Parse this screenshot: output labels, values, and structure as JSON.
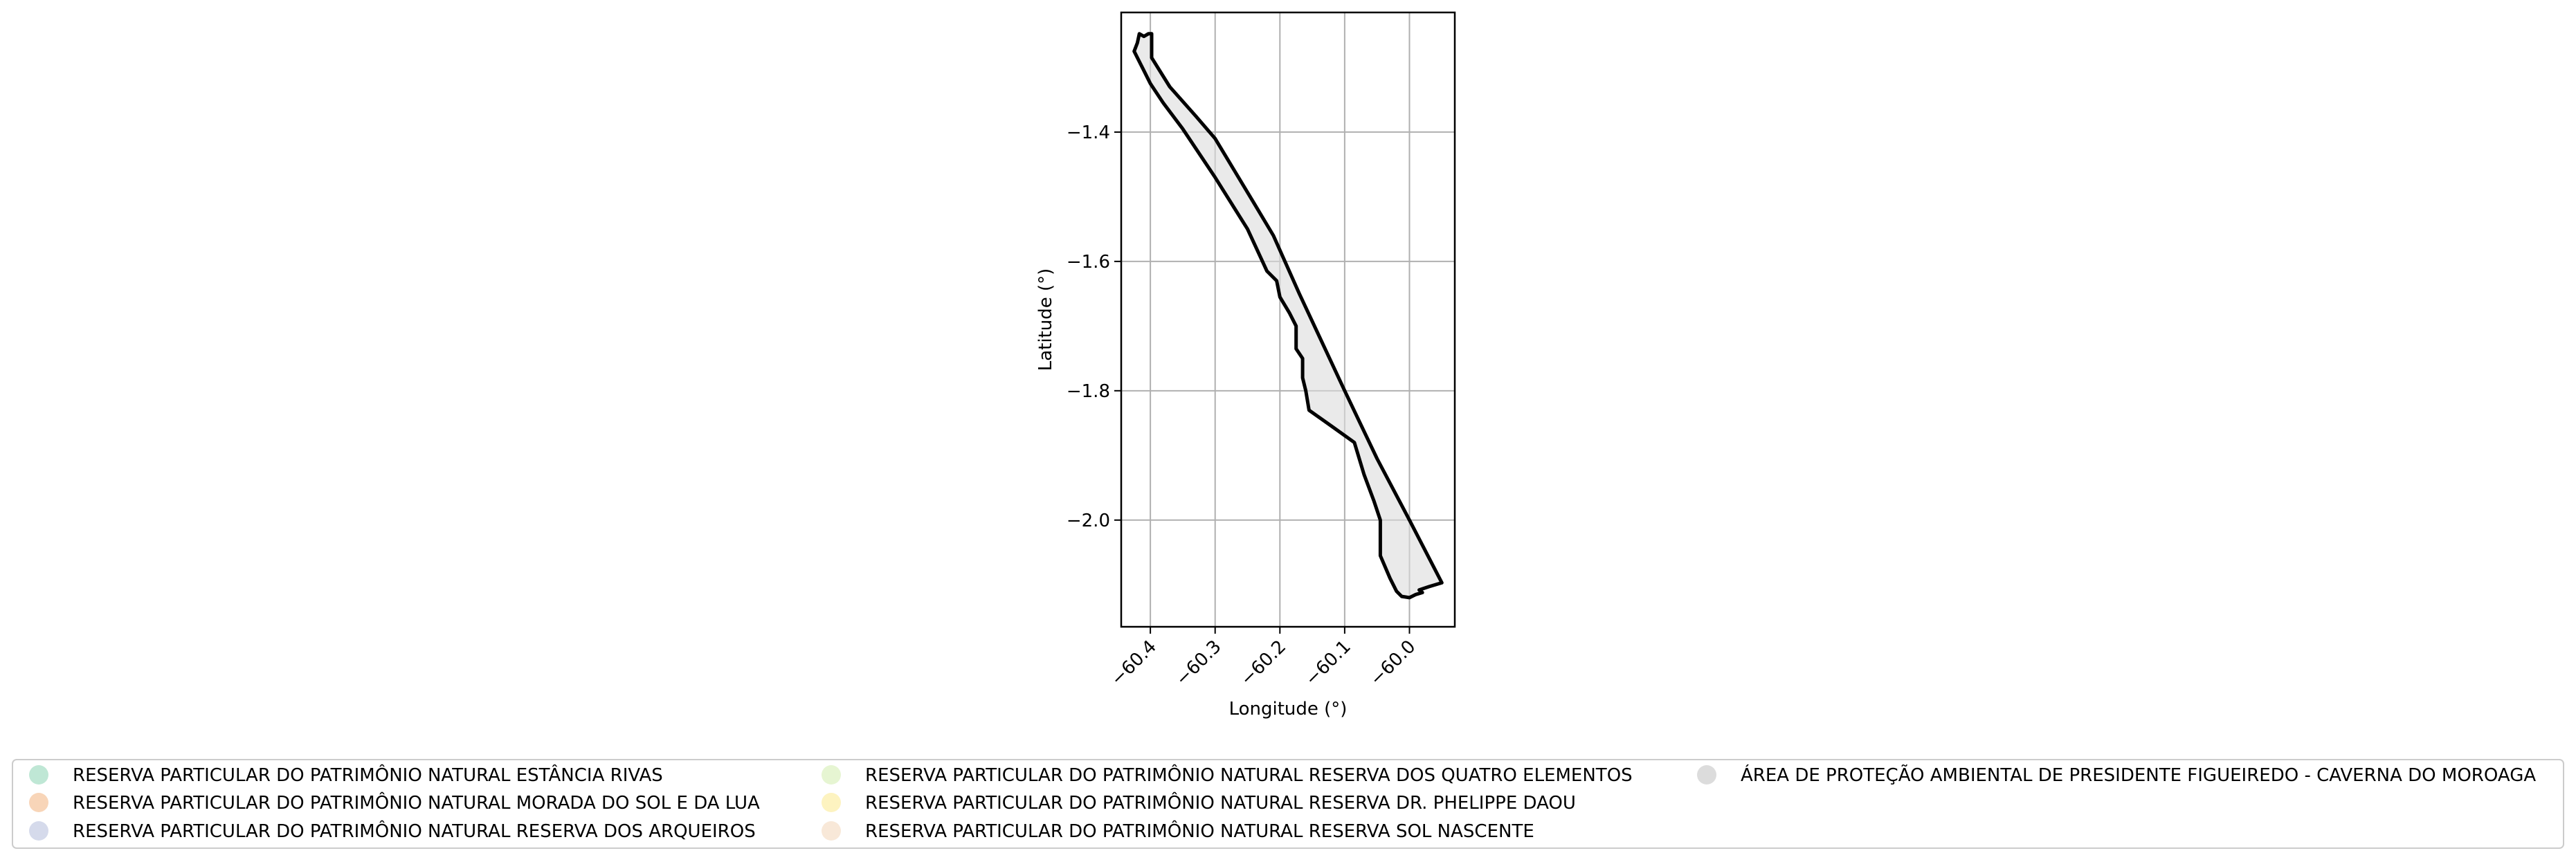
{
  "chart_data": {
    "type": "area",
    "xlabel": "Longitude (°)",
    "ylabel": "Latitude (°)",
    "xlim": [
      -60.445,
      -59.93
    ],
    "ylim": [
      -2.165,
      -1.215
    ],
    "xticks": [
      -60.4,
      -60.3,
      -60.2,
      -60.1,
      -60.0
    ],
    "xtick_labels": [
      "−60.4",
      "−60.3",
      "−60.2",
      "−60.1",
      "−60.0"
    ],
    "yticks": [
      -1.4,
      -1.6,
      -1.8,
      -2.0
    ],
    "ytick_labels": [
      "−1.4",
      "−1.6",
      "−1.8",
      "−2.0"
    ],
    "grid": true,
    "legend_placement": "bottom",
    "boundary": {
      "edge_color": "#000000",
      "fill_color": "#dcdcdc",
      "points": [
        [
          -60.42,
          -1.262
        ],
        [
          -60.417,
          -1.248
        ],
        [
          -60.41,
          -1.252
        ],
        [
          -60.403,
          -1.248
        ],
        [
          -60.398,
          -1.248
        ],
        [
          -60.398,
          -1.285
        ],
        [
          -60.37,
          -1.33
        ],
        [
          -60.33,
          -1.375
        ],
        [
          -60.3,
          -1.41
        ],
        [
          -60.27,
          -1.46
        ],
        [
          -60.24,
          -1.51
        ],
        [
          -60.21,
          -1.56
        ],
        [
          -60.17,
          -1.65
        ],
        [
          -60.1,
          -1.8
        ],
        [
          -60.05,
          -1.905
        ],
        [
          -60.0,
          -2.0
        ],
        [
          -59.95,
          -2.097
        ],
        [
          -59.97,
          -2.103
        ],
        [
          -59.985,
          -2.108
        ],
        [
          -59.98,
          -2.112
        ],
        [
          -59.99,
          -2.115
        ],
        [
          -60.0,
          -2.12
        ],
        [
          -60.012,
          -2.118
        ],
        [
          -60.02,
          -2.11
        ],
        [
          -60.03,
          -2.09
        ],
        [
          -60.045,
          -2.055
        ],
        [
          -60.045,
          -2.0
        ],
        [
          -60.055,
          -1.97
        ],
        [
          -60.07,
          -1.93
        ],
        [
          -60.085,
          -1.88
        ],
        [
          -60.12,
          -1.855
        ],
        [
          -60.155,
          -1.83
        ],
        [
          -60.16,
          -1.8
        ],
        [
          -60.165,
          -1.78
        ],
        [
          -60.165,
          -1.75
        ],
        [
          -60.175,
          -1.735
        ],
        [
          -60.175,
          -1.7
        ],
        [
          -60.185,
          -1.68
        ],
        [
          -60.2,
          -1.655
        ],
        [
          -60.205,
          -1.63
        ],
        [
          -60.22,
          -1.615
        ],
        [
          -60.25,
          -1.55
        ],
        [
          -60.3,
          -1.47
        ],
        [
          -60.35,
          -1.395
        ],
        [
          -60.38,
          -1.355
        ],
        [
          -60.4,
          -1.325
        ],
        [
          -60.41,
          -1.305
        ],
        [
          -60.425,
          -1.275
        ]
      ]
    },
    "legend": {
      "entries": [
        {
          "label": "RESERVA PARTICULAR DO PATRIMÔNIO NATURAL ESTÂNCIA RIVAS",
          "color": "#bfe7d5"
        },
        {
          "label": "RESERVA PARTICULAR DO PATRIMÔNIO NATURAL MORADA DO SOL E DA LUA",
          "color": "#f8d5b8"
        },
        {
          "label": "RESERVA PARTICULAR DO PATRIMÔNIO NATURAL RESERVA DOS ARQUEIROS",
          "color": "#d5daeb"
        },
        {
          "label": "RESERVA PARTICULAR DO PATRIMÔNIO NATURAL RESERVA DOS QUATRO ELEMENTOS",
          "color": "#e6f5d2"
        },
        {
          "label": "RESERVA PARTICULAR DO PATRIMÔNIO NATURAL RESERVA DR. PHELIPPE DAOU",
          "color": "#fdf3c0"
        },
        {
          "label": "RESERVA PARTICULAR DO PATRIMÔNIO NATURAL RESERVA SOL NASCENTE",
          "color": "#f8e8d8"
        },
        {
          "label": "ÁREA DE PROTEÇÃO AMBIENTAL DE PRESIDENTE FIGUEIREDO - CAVERNA DO MOROAGA",
          "color": "#dcdcdc"
        }
      ]
    }
  }
}
